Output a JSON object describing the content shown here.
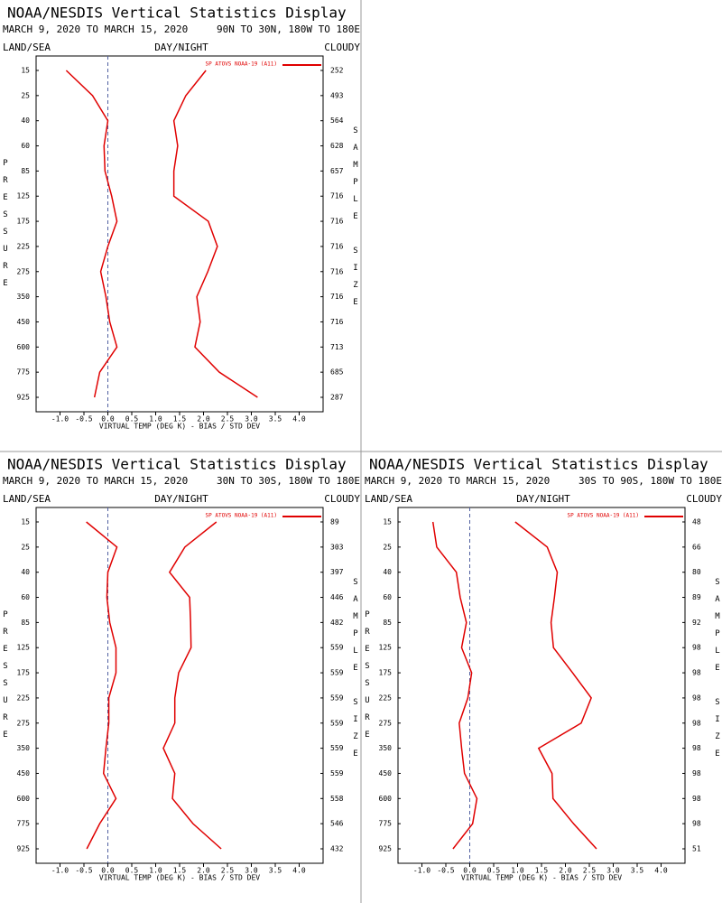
{
  "chart_data": [
    {
      "type": "line",
      "title": "NOAA/NESDIS Vertical Statistics Display",
      "subtitle": "MARCH 9, 2020 TO MARCH 15, 2020",
      "region": "90N TO 30N, 180W TO 180E",
      "land_sea": "LAND/SEA",
      "day_night": "DAY/NIGHT",
      "cloudy": "CLOUDY",
      "y_label": "PRESSURE",
      "y2_label": "SAMPLE SIZE",
      "x_label": "VIRTUAL TEMP (DEG K) - BIAS / STD DEV",
      "categories": [
        15,
        25,
        40,
        60,
        85,
        125,
        175,
        225,
        275,
        350,
        450,
        600,
        775,
        925
      ],
      "sample_sizes": [
        252,
        493,
        564,
        628,
        657,
        716,
        716,
        716,
        716,
        716,
        716,
        713,
        685,
        287
      ],
      "series": [
        {
          "name": "SP ATOVS NOAA-19 (A11)",
          "color": "#e00000",
          "bias": [
            -0.87,
            -0.32,
            0.0,
            -0.08,
            -0.06,
            0.08,
            0.19,
            0.0,
            -0.15,
            -0.04,
            0.04,
            0.19,
            -0.17,
            -0.28
          ],
          "std_dev": [
            2.05,
            1.63,
            1.38,
            1.46,
            1.38,
            1.38,
            2.1,
            2.29,
            2.09,
            1.86,
            1.93,
            1.82,
            2.33,
            3.13
          ]
        }
      ],
      "xlim": [
        -1.5,
        4.5
      ],
      "xticks": [
        {
          "value": -1,
          "label": "-1.0"
        },
        -0.5,
        {
          "value": 0,
          "label": "0.0"
        },
        0.5,
        {
          "value": 1,
          "label": "1.0"
        },
        1.5,
        {
          "value": 2,
          "label": "2.0"
        },
        2.5,
        {
          "value": 3,
          "label": "3.0"
        },
        3.5,
        {
          "value": 4,
          "label": "4.0"
        }
      ]
    },
    {
      "type": "line",
      "title": "NOAA/NESDIS Vertical Statistics Display",
      "subtitle": "MARCH 9, 2020 TO MARCH 15, 2020",
      "region": "30N TO 30S, 180W TO 180E",
      "land_sea": "LAND/SEA",
      "day_night": "DAY/NIGHT",
      "cloudy": "CLOUDY",
      "y_label": "PRESSURE",
      "y2_label": "SAMPLE SIZE",
      "x_label": "VIRTUAL TEMP (DEG K) - BIAS / STD DEV",
      "categories": [
        15,
        25,
        40,
        60,
        85,
        125,
        175,
        225,
        275,
        350,
        450,
        600,
        775,
        925
      ],
      "sample_sizes": [
        89,
        303,
        397,
        446,
        482,
        559,
        559,
        559,
        559,
        559,
        559,
        558,
        546,
        432
      ],
      "series": [
        {
          "name": "SP ATOVS NOAA-19 (A11)",
          "color": "#e00000",
          "bias": [
            -0.45,
            0.19,
            0.0,
            -0.02,
            0.04,
            0.17,
            0.17,
            0.02,
            0.02,
            -0.04,
            -0.09,
            0.17,
            -0.17,
            -0.44
          ],
          "std_dev": [
            2.27,
            1.61,
            1.29,
            1.71,
            1.73,
            1.74,
            1.48,
            1.4,
            1.4,
            1.16,
            1.4,
            1.35,
            1.78,
            2.37
          ]
        }
      ],
      "xlim": [
        -1.5,
        4.5
      ],
      "xticks": [
        {
          "value": -1,
          "label": "-1.0"
        },
        -0.5,
        {
          "value": 0,
          "label": "0.0"
        },
        0.5,
        {
          "value": 1,
          "label": "1.0"
        },
        1.5,
        {
          "value": 2,
          "label": "2.0"
        },
        2.5,
        {
          "value": 3,
          "label": "3.0"
        },
        3.5,
        {
          "value": 4,
          "label": "4.0"
        }
      ]
    },
    {
      "type": "line",
      "title": "NOAA/NESDIS Vertical Statistics Display",
      "subtitle": "MARCH 9, 2020 TO MARCH 15, 2020",
      "region": "30S TO 90S, 180W TO 180E",
      "land_sea": "LAND/SEA",
      "day_night": "DAY/NIGHT",
      "cloudy": "CLOUDY",
      "y_label": "PRESSURE",
      "y2_label": "SAMPLE SIZE",
      "x_label": "VIRTUAL TEMP (DEG K) - BIAS / STD DEV",
      "categories": [
        15,
        25,
        40,
        60,
        85,
        125,
        175,
        225,
        275,
        350,
        450,
        600,
        775,
        925
      ],
      "sample_sizes": [
        48,
        66,
        80,
        89,
        92,
        98,
        98,
        98,
        98,
        98,
        98,
        98,
        98,
        51
      ],
      "series": [
        {
          "name": "SP ATOVS NOAA-19 (A11)",
          "color": "#e00000",
          "bias": [
            -0.77,
            -0.69,
            -0.28,
            -0.2,
            -0.07,
            -0.17,
            0.04,
            -0.04,
            -0.22,
            -0.17,
            -0.11,
            0.15,
            0.06,
            -0.35
          ],
          "std_dev": [
            0.95,
            1.62,
            1.83,
            1.77,
            1.7,
            1.75,
            2.15,
            2.54,
            2.33,
            1.44,
            1.72,
            1.74,
            2.17,
            2.65
          ]
        }
      ],
      "xlim": [
        -1.5,
        4.5
      ],
      "xticks": [
        {
          "value": -1,
          "label": "-1.0"
        },
        -0.5,
        {
          "value": 0,
          "label": "0.0"
        },
        0.5,
        {
          "value": 1,
          "label": "1.0"
        },
        1.5,
        {
          "value": 2,
          "label": "2.0"
        },
        2.5,
        {
          "value": 3,
          "label": "3.0"
        },
        3.5,
        {
          "value": 4,
          "label": "4.0"
        }
      ]
    }
  ]
}
